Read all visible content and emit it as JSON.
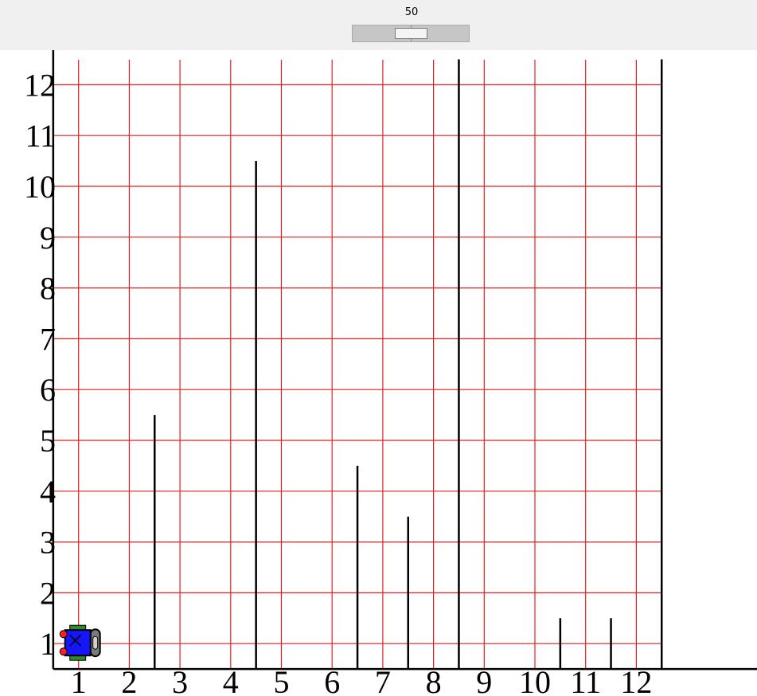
{
  "speed": {
    "label": "50",
    "value": 50,
    "max": 100
  },
  "world": {
    "x_labels": [
      "1",
      "2",
      "3",
      "4",
      "5",
      "6",
      "7",
      "8",
      "9",
      "10",
      "11",
      "12"
    ],
    "y_labels": [
      "1",
      "2",
      "3",
      "4",
      "5",
      "6",
      "7",
      "8",
      "9",
      "10",
      "11",
      "12"
    ],
    "grid_color": "#e41e1e",
    "wall_color": "#000000",
    "walls": [
      {
        "between_x": [
          2,
          3
        ],
        "top_y": 5.5
      },
      {
        "between_x": [
          4,
          5
        ],
        "top_y": 10.5
      },
      {
        "between_x": [
          6,
          7
        ],
        "top_y": 4.5
      },
      {
        "between_x": [
          7,
          8
        ],
        "top_y": 3.5
      },
      {
        "between_x": [
          8,
          9
        ],
        "top_y": 12.5
      },
      {
        "between_x": [
          10,
          11
        ],
        "top_y": 1.5
      },
      {
        "between_x": [
          11,
          12
        ],
        "top_y": 1.5
      },
      {
        "between_x": [
          12,
          13
        ],
        "top_y": 12.5
      }
    ],
    "robot": {
      "x": 1,
      "y": 1,
      "facing": "east",
      "body_color": "#1515ff"
    }
  }
}
